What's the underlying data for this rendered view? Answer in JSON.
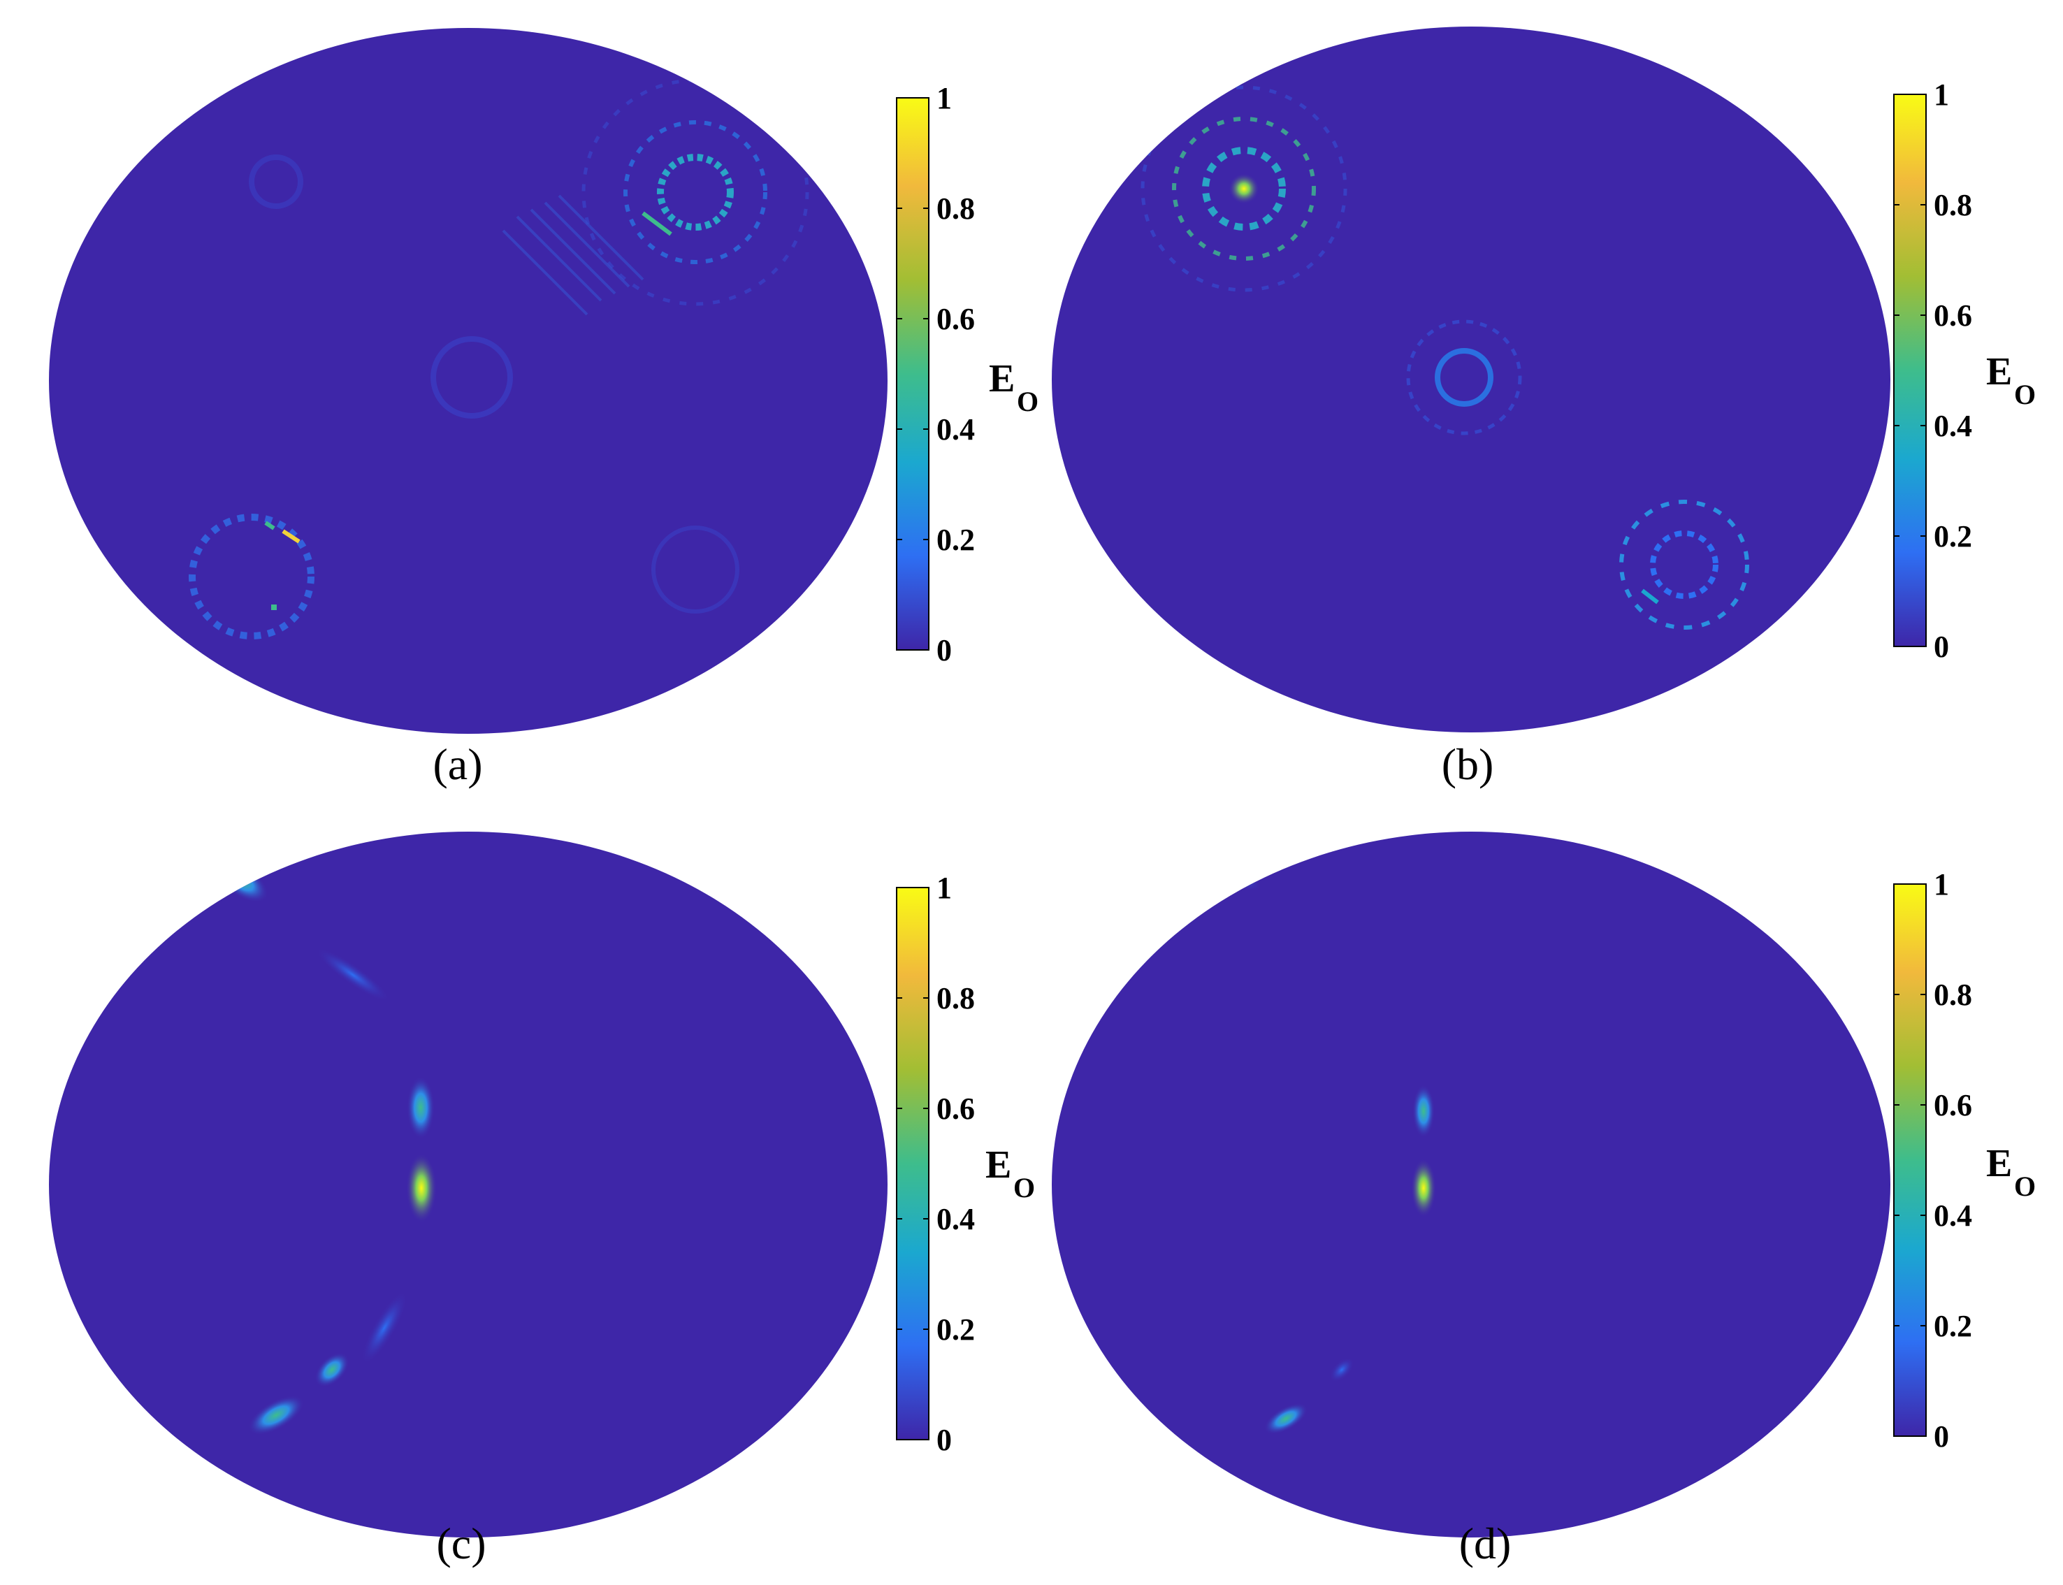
{
  "chart_data": [
    {
      "panel": "a",
      "type": "heatmap",
      "caption": "(a)",
      "colorbar": {
        "label": "E",
        "label_subscript": "O",
        "ticks": [
          "0",
          "0.2",
          "0.4",
          "0.6",
          "0.8",
          "1"
        ],
        "range": [
          0,
          1
        ]
      },
      "colormap": [
        "#3e26a8",
        "#2e6ff3",
        "#1ba8cf",
        "#3ebd8c",
        "#a2be34",
        "#f1b93c",
        "#f9fb15"
      ],
      "background": "#3e26a8"
    },
    {
      "panel": "b",
      "type": "heatmap",
      "caption": "(b)",
      "colorbar": {
        "label": "E",
        "label_subscript": "O",
        "ticks": [
          "0",
          "0.2",
          "0.4",
          "0.6",
          "0.8",
          "1"
        ],
        "range": [
          0,
          1
        ]
      },
      "colormap": [
        "#3e26a8",
        "#2e6ff3",
        "#1ba8cf",
        "#3ebd8c",
        "#a2be34",
        "#f1b93c",
        "#f9fb15"
      ],
      "background": "#3e26a8"
    },
    {
      "panel": "c",
      "type": "heatmap",
      "caption": "(c)",
      "colorbar": {
        "label": "E",
        "label_subscript": "O",
        "ticks": [
          "0",
          "0.2",
          "0.4",
          "0.6",
          "0.8",
          "1"
        ],
        "range": [
          0,
          1
        ]
      },
      "colormap": [
        "#3e26a8",
        "#2e6ff3",
        "#1ba8cf",
        "#3ebd8c",
        "#a2be34",
        "#f1b93c",
        "#f9fb15"
      ],
      "background": "#3e26a8"
    },
    {
      "panel": "d",
      "type": "heatmap",
      "caption": "(d)",
      "colorbar": {
        "label": "E",
        "label_subscript": "O",
        "ticks": [
          "0",
          "0.2",
          "0.4",
          "0.6",
          "0.8",
          "1"
        ],
        "range": [
          0,
          1
        ]
      },
      "colormap": [
        "#3e26a8",
        "#2e6ff3",
        "#1ba8cf",
        "#3ebd8c",
        "#a2be34",
        "#f1b93c",
        "#f9fb15"
      ],
      "background": "#3e26a8"
    }
  ]
}
